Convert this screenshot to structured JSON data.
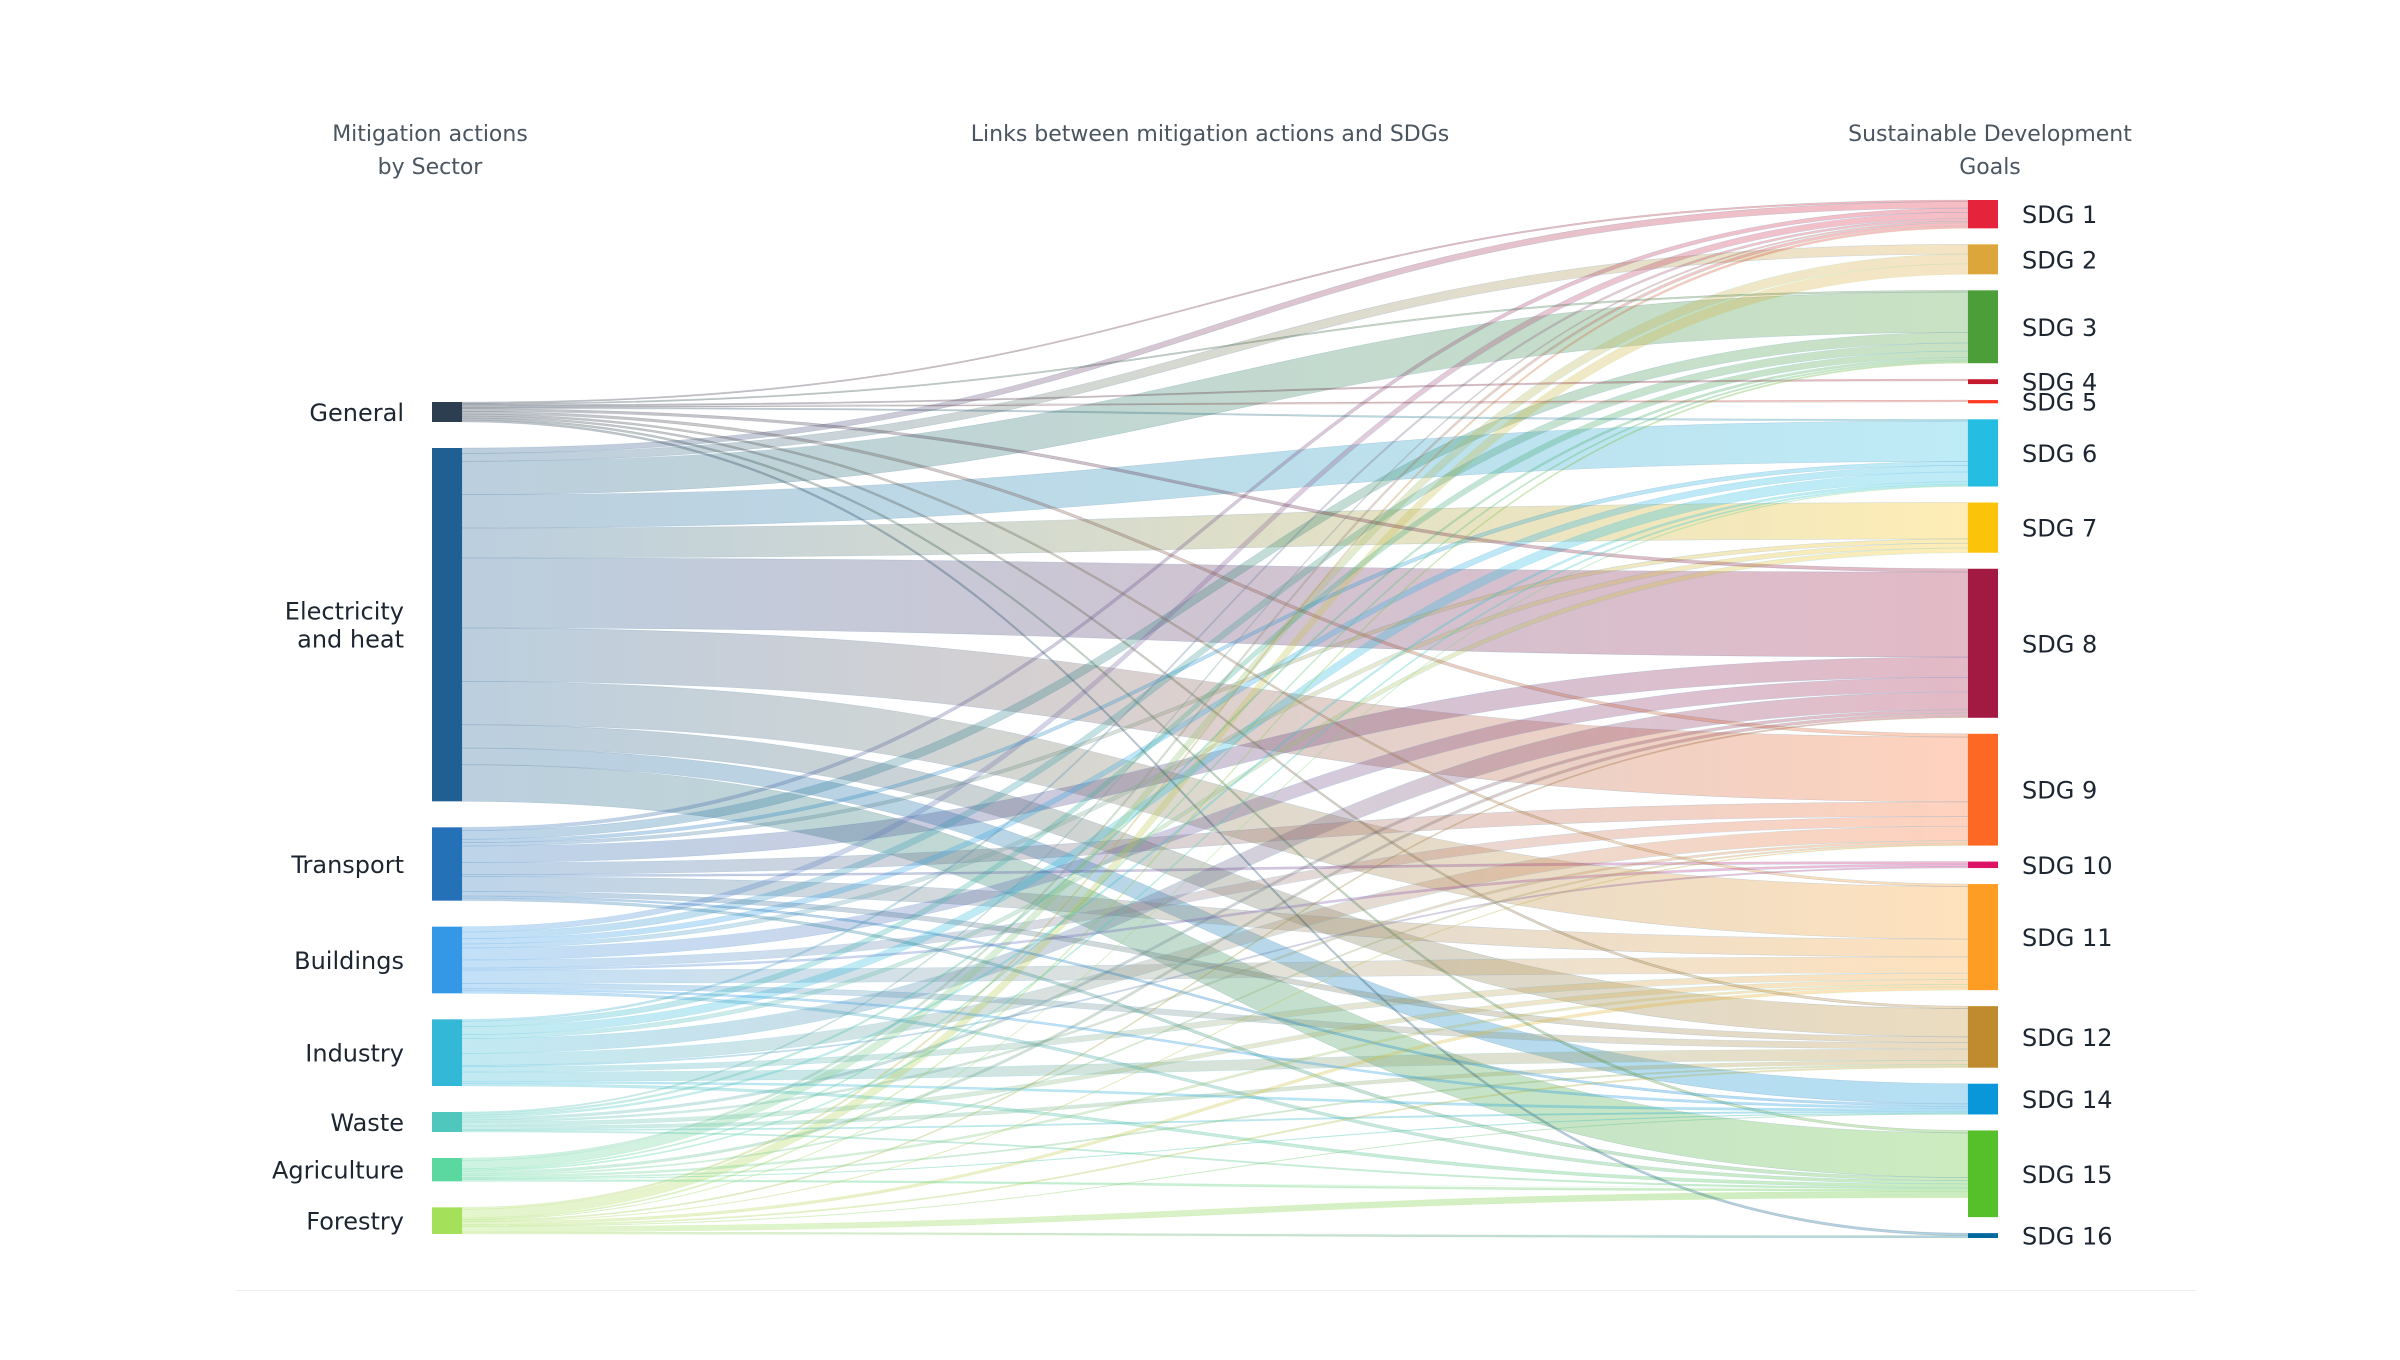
{
  "headers": {
    "left": [
      "Mitigation actions",
      "by Sector"
    ],
    "middle": "Links between mitigation actions and SDGs",
    "right": [
      "Sustainable Development",
      "Goals"
    ]
  },
  "chart_data": {
    "type": "sankey",
    "sources": [
      {
        "name": "General",
        "label_lines": [
          "General"
        ],
        "value": 3,
        "color": "#2c3e50"
      },
      {
        "name": "Electricity and heat",
        "label_lines": [
          "Electricity",
          "and heat"
        ],
        "value": 53,
        "color": "#1f5f92"
      },
      {
        "name": "Transport",
        "label_lines": [
          "Transport"
        ],
        "value": 11,
        "color": "#2471b8"
      },
      {
        "name": "Buildings",
        "label_lines": [
          "Buildings"
        ],
        "value": 10,
        "color": "#3598e6"
      },
      {
        "name": "Industry",
        "label_lines": [
          "Industry"
        ],
        "value": 10,
        "color": "#33b8d8"
      },
      {
        "name": "Waste",
        "label_lines": [
          "Waste"
        ],
        "value": 3,
        "color": "#4fc7bd"
      },
      {
        "name": "Agriculture",
        "label_lines": [
          "Agriculture"
        ],
        "value": 3.5,
        "color": "#5bd8a0"
      },
      {
        "name": "Forestry",
        "label_lines": [
          "Forestry"
        ],
        "value": 4,
        "color": "#a4e05a"
      }
    ],
    "targets": [
      {
        "name": "SDG 1",
        "value": 3.5,
        "color": "#e5243b"
      },
      {
        "name": "SDG 2",
        "value": 3.7,
        "color": "#dda63a"
      },
      {
        "name": "SDG 3",
        "value": 9,
        "color": "#4c9f38"
      },
      {
        "name": "SDG 4",
        "value": 0.6,
        "color": "#c5192d"
      },
      {
        "name": "SDG 5",
        "value": 0.4,
        "color": "#ff3a21"
      },
      {
        "name": "SDG 6",
        "value": 8.3,
        "color": "#26bde2"
      },
      {
        "name": "SDG 7",
        "value": 6.2,
        "color": "#fcc30b"
      },
      {
        "name": "SDG 8",
        "value": 18.4,
        "color": "#a21942"
      },
      {
        "name": "SDG 9",
        "value": 13.8,
        "color": "#fd6925"
      },
      {
        "name": "SDG 10",
        "value": 0.8,
        "color": "#dd1367"
      },
      {
        "name": "SDG 11",
        "value": 13.1,
        "color": "#fd9d24"
      },
      {
        "name": "SDG 12",
        "value": 7.6,
        "color": "#bf8b2e"
      },
      {
        "name": "SDG 14",
        "value": 3.8,
        "color": "#0a97d9"
      },
      {
        "name": "SDG 15",
        "value": 10.7,
        "color": "#56c02b"
      },
      {
        "name": "SDG 16",
        "value": 0.6,
        "color": "#00689d"
      }
    ],
    "links": [
      [
        "General",
        "SDG 1",
        0.2
      ],
      [
        "General",
        "SDG 3",
        0.2
      ],
      [
        "General",
        "SDG 4",
        0.2
      ],
      [
        "General",
        "SDG 5",
        0.2
      ],
      [
        "General",
        "SDG 6",
        0.2
      ],
      [
        "General",
        "SDG 8",
        0.4
      ],
      [
        "General",
        "SDG 9",
        0.4
      ],
      [
        "General",
        "SDG 11",
        0.3
      ],
      [
        "General",
        "SDG 12",
        0.3
      ],
      [
        "General",
        "SDG 15",
        0.3
      ],
      [
        "General",
        "SDG 16",
        0.3
      ],
      [
        "Electricity and heat",
        "SDG 1",
        0.8
      ],
      [
        "Electricity and heat",
        "SDG 2",
        1.2
      ],
      [
        "Electricity and heat",
        "SDG 3",
        5.0
      ],
      [
        "Electricity and heat",
        "SDG 6",
        5.0
      ],
      [
        "Electricity and heat",
        "SDG 7",
        4.5
      ],
      [
        "Electricity and heat",
        "SDG 8",
        10.5
      ],
      [
        "Electricity and heat",
        "SDG 9",
        8.0
      ],
      [
        "Electricity and heat",
        "SDG 11",
        6.5
      ],
      [
        "Electricity and heat",
        "SDG 12",
        3.5
      ],
      [
        "Electricity and heat",
        "SDG 14",
        2.5
      ],
      [
        "Electricity and heat",
        "SDG 15",
        5.5
      ],
      [
        "Transport",
        "SDG 1",
        0.5
      ],
      [
        "Transport",
        "SDG 3",
        1.3
      ],
      [
        "Transport",
        "SDG 6",
        0.5
      ],
      [
        "Transport",
        "SDG 7",
        0.5
      ],
      [
        "Transport",
        "SDG 8",
        2.5
      ],
      [
        "Transport",
        "SDG 9",
        1.8
      ],
      [
        "Transport",
        "SDG 10",
        0.3
      ],
      [
        "Transport",
        "SDG 11",
        2.2
      ],
      [
        "Transport",
        "SDG 12",
        0.7
      ],
      [
        "Transport",
        "SDG 14",
        0.3
      ],
      [
        "Transport",
        "SDG 15",
        0.4
      ],
      [
        "Buildings",
        "SDG 1",
        0.8
      ],
      [
        "Buildings",
        "SDG 3",
        1.0
      ],
      [
        "Buildings",
        "SDG 6",
        0.8
      ],
      [
        "Buildings",
        "SDG 7",
        0.6
      ],
      [
        "Buildings",
        "SDG 8",
        1.8
      ],
      [
        "Buildings",
        "SDG 9",
        1.2
      ],
      [
        "Buildings",
        "SDG 10",
        0.3
      ],
      [
        "Buildings",
        "SDG 11",
        2.0
      ],
      [
        "Buildings",
        "SDG 12",
        0.8
      ],
      [
        "Buildings",
        "SDG 14",
        0.3
      ],
      [
        "Buildings",
        "SDG 15",
        0.4
      ],
      [
        "Industry",
        "SDG 1",
        0.3
      ],
      [
        "Industry",
        "SDG 3",
        0.8
      ],
      [
        "Industry",
        "SDG 6",
        1.2
      ],
      [
        "Industry",
        "SDG 7",
        0.6
      ],
      [
        "Industry",
        "SDG 8",
        2.2
      ],
      [
        "Industry",
        "SDG 9",
        1.8
      ],
      [
        "Industry",
        "SDG 10",
        0.2
      ],
      [
        "Industry",
        "SDG 11",
        0.8
      ],
      [
        "Industry",
        "SDG 12",
        1.4
      ],
      [
        "Industry",
        "SDG 14",
        0.3
      ],
      [
        "Industry",
        "SDG 15",
        0.4
      ],
      [
        "Waste",
        "SDG 1",
        0.2
      ],
      [
        "Waste",
        "SDG 3",
        0.3
      ],
      [
        "Waste",
        "SDG 6",
        0.3
      ],
      [
        "Waste",
        "SDG 8",
        0.4
      ],
      [
        "Waste",
        "SDG 9",
        0.3
      ],
      [
        "Waste",
        "SDG 11",
        0.6
      ],
      [
        "Waste",
        "SDG 12",
        0.5
      ],
      [
        "Waste",
        "SDG 14",
        0.2
      ],
      [
        "Waste",
        "SDG 15",
        0.2
      ],
      [
        "Agriculture",
        "SDG 1",
        0.4
      ],
      [
        "Agriculture",
        "SDG 2",
        1.2
      ],
      [
        "Agriculture",
        "SDG 3",
        0.2
      ],
      [
        "Agriculture",
        "SDG 6",
        0.2
      ],
      [
        "Agriculture",
        "SDG 8",
        0.4
      ],
      [
        "Agriculture",
        "SDG 9",
        0.2
      ],
      [
        "Agriculture",
        "SDG 11",
        0.3
      ],
      [
        "Agriculture",
        "SDG 12",
        0.2
      ],
      [
        "Agriculture",
        "SDG 14",
        0.1
      ],
      [
        "Agriculture",
        "SDG 15",
        0.3
      ],
      [
        "Forestry",
        "SDG 1",
        0.3
      ],
      [
        "Forestry",
        "SDG 2",
        1.3
      ],
      [
        "Forestry",
        "SDG 3",
        0.2
      ],
      [
        "Forestry",
        "SDG 6",
        0.1
      ],
      [
        "Forestry",
        "SDG 8",
        0.2
      ],
      [
        "Forestry",
        "SDG 9",
        0.1
      ],
      [
        "Forestry",
        "SDG 11",
        0.4
      ],
      [
        "Forestry",
        "SDG 12",
        0.2
      ],
      [
        "Forestry",
        "SDG 14",
        0.1
      ],
      [
        "Forestry",
        "SDG 15",
        0.8
      ],
      [
        "Forestry",
        "SDG 16",
        0.3
      ]
    ]
  }
}
